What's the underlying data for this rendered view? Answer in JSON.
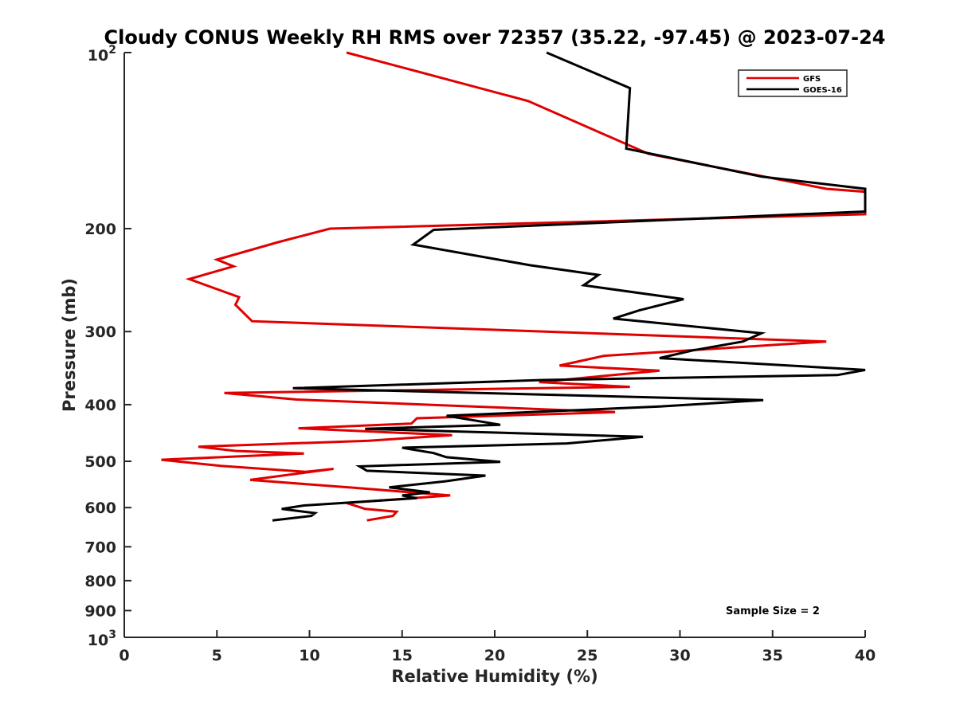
{
  "chart_data": {
    "type": "line",
    "title": "Cloudy CONUS Weekly RH RMS over 72357 (35.22, -97.45) @ 2023-07-24",
    "xlabel": "Relative Humidity (%)",
    "ylabel": "Pressure (mb)",
    "xlim": [
      0,
      40
    ],
    "ylim": [
      100,
      1000
    ],
    "y_scale": "log",
    "y_reversed": true,
    "grid": false,
    "legend_position": "top-right",
    "x_ticks": [
      "0",
      "5",
      "10",
      "15",
      "20",
      "25",
      "30",
      "35",
      "40"
    ],
    "y_ticks": [
      {
        "value": 100,
        "base": "10",
        "exp": "2"
      },
      {
        "value": 200,
        "label": "200"
      },
      {
        "value": 300,
        "label": "300"
      },
      {
        "value": 400,
        "label": "400"
      },
      {
        "value": 500,
        "label": "500"
      },
      {
        "value": 600,
        "label": "600"
      },
      {
        "value": 700,
        "label": "700"
      },
      {
        "value": 800,
        "label": "800"
      },
      {
        "value": 900,
        "label": "900"
      },
      {
        "value": 1000,
        "base": "10",
        "exp": "3"
      }
    ],
    "annotation": "Sample Size = 2",
    "series": [
      {
        "name": "GFS",
        "color": "#e00000",
        "points": [
          [
            12.0,
            100
          ],
          [
            21.8,
            121
          ],
          [
            28.3,
            149
          ],
          [
            37.9,
            171
          ],
          [
            40.0,
            173
          ],
          [
            40.0,
            189
          ],
          [
            11.1,
            200
          ],
          [
            8.3,
            211
          ],
          [
            5.0,
            226
          ],
          [
            5.9,
            232
          ],
          [
            3.5,
            244
          ],
          [
            6.2,
            262
          ],
          [
            6.0,
            270
          ],
          [
            6.9,
            288
          ],
          [
            37.9,
            312
          ],
          [
            25.9,
            330
          ],
          [
            23.5,
            343
          ],
          [
            28.9,
            350
          ],
          [
            22.4,
            366
          ],
          [
            27.3,
            373
          ],
          [
            5.4,
            382
          ],
          [
            9.3,
            392
          ],
          [
            26.5,
            412
          ],
          [
            15.8,
            422
          ],
          [
            15.5,
            431
          ],
          [
            9.4,
            439
          ],
          [
            17.7,
            451
          ],
          [
            13.2,
            461
          ],
          [
            4.0,
            472
          ],
          [
            6.0,
            480
          ],
          [
            9.7,
            485
          ],
          [
            2.0,
            497
          ],
          [
            5.2,
            509
          ],
          [
            9.8,
            521
          ],
          [
            11.3,
            515
          ],
          [
            6.8,
            538
          ],
          [
            12.4,
            555
          ],
          [
            17.6,
            572
          ],
          [
            12.0,
            589
          ],
          [
            13.0,
            603
          ],
          [
            14.7,
            610
          ],
          [
            14.5,
            620
          ],
          [
            13.1,
            631
          ]
        ]
      },
      {
        "name": "GOES-16",
        "color": "#000000",
        "points": [
          [
            22.8,
            100
          ],
          [
            27.3,
            115
          ],
          [
            27.1,
            146
          ],
          [
            34.4,
            163
          ],
          [
            40.0,
            171
          ],
          [
            40.0,
            187
          ],
          [
            16.7,
            201
          ],
          [
            15.6,
            213
          ],
          [
            21.9,
            231
          ],
          [
            25.6,
            240
          ],
          [
            24.8,
            250
          ],
          [
            30.2,
            264
          ],
          [
            27.8,
            276
          ],
          [
            26.4,
            285
          ],
          [
            34.4,
            302
          ],
          [
            33.4,
            312
          ],
          [
            30.7,
            323
          ],
          [
            28.9,
            333
          ],
          [
            40.0,
            349
          ],
          [
            38.5,
            356
          ],
          [
            22.6,
            363
          ],
          [
            9.1,
            375
          ],
          [
            34.5,
            393
          ],
          [
            28.9,
            403
          ],
          [
            17.4,
            418
          ],
          [
            20.3,
            433
          ],
          [
            13.0,
            440
          ],
          [
            28.0,
            454
          ],
          [
            23.9,
            466
          ],
          [
            15.0,
            474
          ],
          [
            16.7,
            484
          ],
          [
            17.4,
            492
          ],
          [
            20.3,
            501
          ],
          [
            12.7,
            510
          ],
          [
            13.1,
            519
          ],
          [
            19.5,
            529
          ],
          [
            17.3,
            541
          ],
          [
            14.3,
            554
          ],
          [
            16.5,
            565
          ],
          [
            15.0,
            572
          ],
          [
            15.8,
            578
          ],
          [
            9.7,
            595
          ],
          [
            8.5,
            603
          ],
          [
            10.3,
            613
          ],
          [
            10.1,
            620
          ],
          [
            8.0,
            631
          ]
        ]
      }
    ]
  }
}
